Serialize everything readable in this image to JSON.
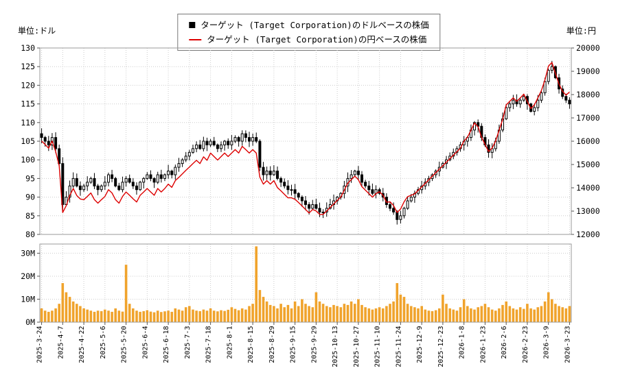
{
  "axes": {
    "left_unit": "単位:ドル",
    "right_unit": "単位:円",
    "left_ticks": [
      130,
      125,
      120,
      115,
      110,
      105,
      100,
      95,
      90,
      85,
      80
    ],
    "right_ticks": [
      20000,
      19000,
      18000,
      17000,
      16000,
      15000,
      14000,
      13000,
      12000
    ],
    "volume_ticks": [
      30,
      20,
      10,
      0
    ],
    "volume_tick_labels": [
      "30M",
      "20M",
      "10M",
      "0M"
    ]
  },
  "legend": {
    "items": [
      {
        "marker": "square",
        "color": "#000000",
        "label": "ターゲット (Target Corporation)のドルベースの株価"
      },
      {
        "marker": "line",
        "color": "#dd0000",
        "label": "ターゲット (Target Corporation)の円ベースの株価"
      }
    ]
  },
  "chart_data": {
    "type": "candlestick",
    "grid": true,
    "left_axis": {
      "label": "単位:ドル",
      "min": 80,
      "max": 130,
      "tick_step": 5
    },
    "right_axis": {
      "label": "単位:円",
      "min": 12000,
      "max": 20000,
      "tick_step": 1000
    },
    "volume_axis": {
      "min": 0,
      "ticks": [
        0,
        10,
        20,
        30
      ],
      "unit": "M",
      "plot_max": 34
    },
    "x_tick_labels": [
      "2025-3-24",
      "2025-4-7",
      "2025-4-22",
      "2025-5-6",
      "2025-5-20",
      "2025-6-4",
      "2025-6-18",
      "2025-7-3",
      "2025-7-18",
      "2025-8-1",
      "2025-8-15",
      "2025-8-29",
      "2025-9-15",
      "2025-9-29",
      "2025-10-13",
      "2025-10-27",
      "2025-11-10",
      "2025-11-24",
      "2025-12-9",
      "2025-12-23",
      "2026-1-8",
      "2026-1-23",
      "2026-2-6",
      "2026-2-23",
      "2026-3-9",
      "2026-3-23"
    ],
    "x_tick_indices": [
      0,
      6,
      12,
      18,
      24,
      30,
      36,
      42,
      48,
      54,
      60,
      66,
      72,
      78,
      84,
      90,
      96,
      102,
      108,
      114,
      120,
      126,
      132,
      138,
      144,
      150
    ],
    "series": [
      {
        "name": "ターゲット (Target Corporation)のドルベースの株価",
        "type": "candlestick",
        "axis": "left",
        "color": "#000000",
        "close": [
          106,
          105,
          104,
          106,
          103,
          99,
          88,
          90,
          93,
          95,
          93,
          92,
          93,
          94,
          95,
          93,
          92,
          93,
          94,
          96,
          95,
          93,
          92,
          94,
          95,
          94,
          93,
          92,
          94,
          95,
          96,
          95,
          94,
          96,
          95,
          96,
          97,
          96,
          98,
          99,
          100,
          101,
          102,
          103,
          104,
          103,
          105,
          104,
          105,
          104,
          103,
          104,
          105,
          104,
          105,
          106,
          105,
          107,
          106,
          105,
          106,
          105,
          98,
          96,
          97,
          96,
          97,
          95,
          94,
          93,
          92,
          92,
          91,
          90,
          89,
          88,
          87,
          88,
          87,
          86,
          86,
          87,
          88,
          89,
          90,
          91,
          93,
          95,
          96,
          97,
          96,
          94,
          93,
          92,
          91,
          92,
          91,
          90,
          88,
          87,
          86,
          84,
          85,
          87,
          89,
          90,
          91,
          92,
          93,
          94,
          95,
          96,
          97,
          98,
          99,
          100,
          101,
          102,
          103,
          104,
          105,
          106,
          108,
          110,
          109,
          106,
          104,
          102,
          103,
          105,
          108,
          111,
          114,
          115,
          116,
          115,
          116,
          117,
          115,
          113,
          114,
          116,
          118,
          121,
          124,
          125,
          122,
          119,
          117,
          116,
          115
        ]
      },
      {
        "name": "ターゲット (Target Corporation)の円ベースの株価",
        "type": "line",
        "axis": "right",
        "color": "#dd0000",
        "values": [
          16010,
          15860,
          15700,
          16010,
          15550,
          14950,
          12940,
          13230,
          13670,
          13970,
          13670,
          13520,
          13490,
          13630,
          13780,
          13490,
          13340,
          13490,
          13630,
          13920,
          13780,
          13490,
          13340,
          13630,
          13820,
          13680,
          13530,
          13390,
          13680,
          13820,
          13970,
          13820,
          13680,
          13970,
          13820,
          13970,
          14160,
          14020,
          14310,
          14450,
          14600,
          14750,
          14890,
          15040,
          15180,
          15040,
          15330,
          15180,
          15490,
          15340,
          15190,
          15340,
          15490,
          15340,
          15490,
          15640,
          15490,
          15780,
          15640,
          15490,
          15640,
          15490,
          14460,
          14160,
          14310,
          14160,
          14310,
          14010,
          13870,
          13720,
          13570,
          13570,
          13510,
          13370,
          13220,
          13070,
          12920,
          13070,
          13010,
          12860,
          12860,
          13010,
          13160,
          13310,
          13460,
          13600,
          13900,
          14200,
          14350,
          14500,
          14350,
          14050,
          13900,
          13750,
          13600,
          13750,
          13830,
          13680,
          13380,
          13400,
          13240,
          12940,
          13090,
          13400,
          13620,
          13680,
          13740,
          13890,
          14040,
          14190,
          14340,
          14500,
          14650,
          14800,
          14950,
          15100,
          15250,
          15400,
          15550,
          15700,
          16010,
          16170,
          16470,
          16780,
          16620,
          16170,
          15860,
          15560,
          15710,
          16010,
          16470,
          16930,
          17560,
          17710,
          17860,
          17710,
          17860,
          18020,
          17710,
          17400,
          17560,
          17860,
          18170,
          18630,
          19220,
          19380,
          18910,
          18450,
          18140,
          17980,
          18110
        ]
      },
      {
        "name": "volume",
        "type": "bar",
        "axis": "volume",
        "color": "#F0A32C",
        "values": [
          6,
          5,
          4.5,
          5,
          6,
          8,
          17,
          13,
          11,
          9,
          8,
          7,
          6,
          5.5,
          5,
          4.5,
          5,
          4.8,
          5.5,
          5,
          4.5,
          6,
          5,
          4.6,
          25,
          8,
          6,
          5,
          4.5,
          4.8,
          5.2,
          4.6,
          4.3,
          5,
          4.4,
          4.7,
          5,
          4.5,
          6,
          5.5,
          5,
          6.5,
          7,
          5.5,
          5,
          4.8,
          5.5,
          5,
          6,
          5,
          4.7,
          5.2,
          4.9,
          5.4,
          6.5,
          5.8,
          5.2,
          6,
          5.5,
          7,
          8,
          33,
          14,
          11,
          9,
          7.5,
          7,
          6,
          8,
          6.5,
          7.5,
          6,
          9,
          7,
          10,
          8,
          7,
          6.5,
          13,
          9,
          8,
          7,
          6.5,
          7.5,
          7,
          6.5,
          8,
          7.5,
          9,
          8,
          10,
          7.5,
          6.5,
          6,
          5.5,
          6,
          6.5,
          6,
          7,
          8,
          9,
          17,
          12,
          11,
          8,
          7,
          6.5,
          6,
          7,
          5.5,
          5,
          4.8,
          5.2,
          6,
          12,
          8,
          6,
          5.5,
          5,
          6.5,
          10,
          7,
          6,
          5.5,
          6.5,
          7,
          8,
          6.5,
          5.5,
          5,
          6,
          7.5,
          9,
          7,
          6,
          5.5,
          6.5,
          5.8,
          8,
          6,
          5.5,
          6.5,
          7,
          9,
          13,
          10,
          8,
          7,
          6.5,
          6,
          7
        ]
      }
    ]
  }
}
